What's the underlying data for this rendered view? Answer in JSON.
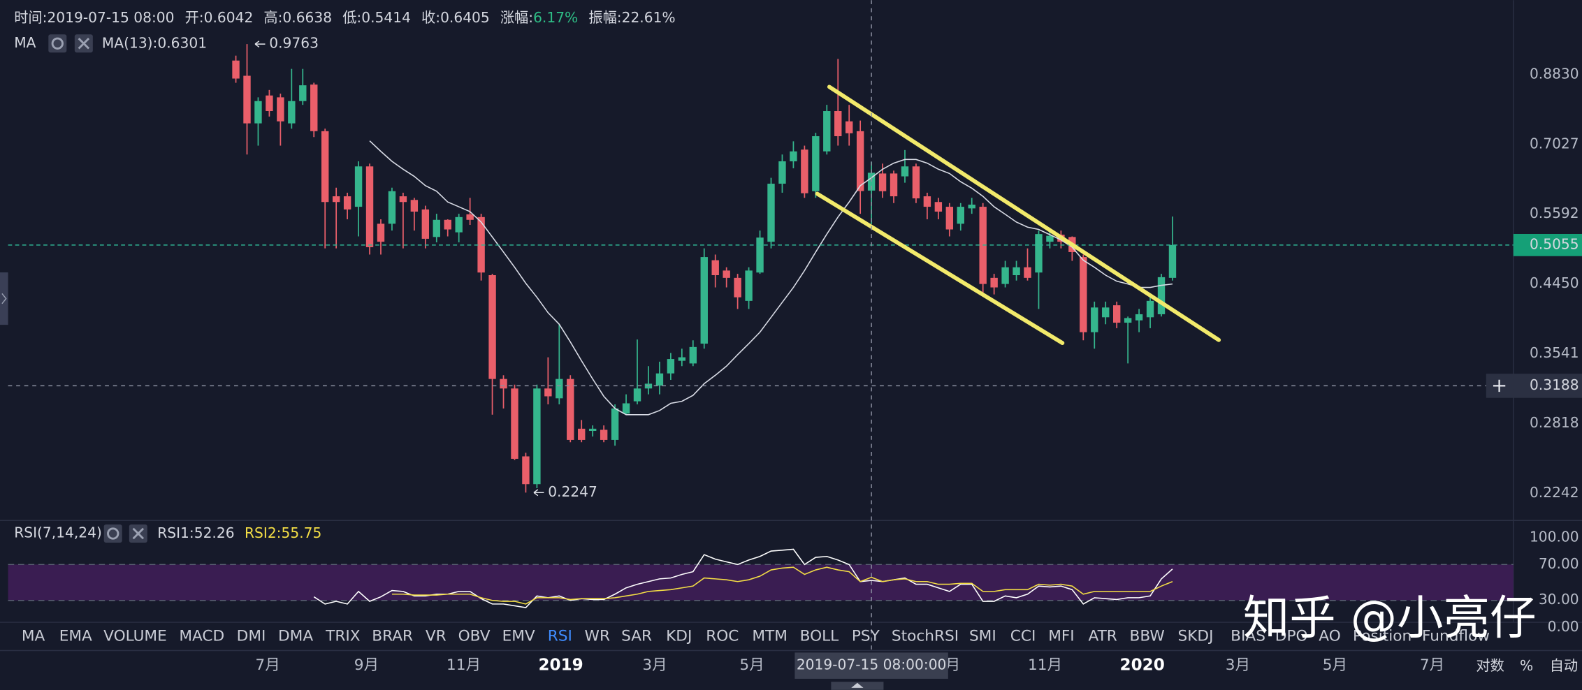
{
  "header": {
    "time_label": "时间:",
    "time": "2019-07-15 08:00",
    "open_label": "开:",
    "high_label": "高:",
    "low_label": "低:",
    "close_label": "收:",
    "change_label": "涨幅:",
    "change": "6.17%",
    "amplitude_label": "振幅:",
    "amplitude": "22.61%",
    "ma_title": "MA"
  },
  "chart_data": {
    "type": "candlestick",
    "log_scale": true,
    "up_color": "#35b68d",
    "down_color": "#ea5f6a",
    "xlim": [
      "2018-01-19",
      "2020-08-21"
    ],
    "xticks": [
      {
        "value": "2018-07-01",
        "label": "7月"
      },
      {
        "value": "2018-09-01",
        "label": "9月"
      },
      {
        "value": "2018-11-01",
        "label": "11月"
      },
      {
        "value": "2019-01-01",
        "label": "2019"
      },
      {
        "value": "2019-03-01",
        "label": "3月"
      },
      {
        "value": "2019-05-01",
        "label": "5月"
      },
      {
        "value": "2019-07-01",
        "label": "7月"
      },
      {
        "value": "2019-09-01",
        "label": "9月"
      },
      {
        "value": "2019-11-01",
        "label": "11月"
      },
      {
        "value": "2020-01-01",
        "label": "2020"
      },
      {
        "value": "2020-03-01",
        "label": "3月"
      },
      {
        "value": "2020-05-01",
        "label": "5月"
      },
      {
        "value": "2020-07-01",
        "label": "7月"
      }
    ],
    "ylim": [
      0.2051,
      1.098
    ],
    "yticks": [
      {
        "value": 0.883,
        "label": "0.8830"
      },
      0.7027,
      0.5592,
      {
        "value": 0.445,
        "label": "0.4450"
      },
      0.3541,
      0.2818,
      0.2242
    ],
    "x": [
      "2018-06-11",
      "2018-06-18",
      "2018-06-25",
      "2018-07-02",
      "2018-07-09",
      "2018-07-16",
      "2018-07-23",
      "2018-07-30",
      "2018-08-06",
      "2018-08-13",
      "2018-08-20",
      "2018-08-27",
      "2018-09-03",
      "2018-09-10",
      "2018-09-17",
      "2018-09-24",
      "2018-10-01",
      "2018-10-08",
      "2018-10-15",
      "2018-10-22",
      "2018-10-29",
      "2018-11-05",
      "2018-11-12",
      "2018-11-19",
      "2018-11-26",
      "2018-12-03",
      "2018-12-10",
      "2018-12-17",
      "2018-12-24",
      "2018-12-31",
      "2019-01-07",
      "2019-01-14",
      "2019-01-21",
      "2019-01-28",
      "2019-02-04",
      "2019-02-11",
      "2019-02-18",
      "2019-02-25",
      "2019-03-04",
      "2019-03-11",
      "2019-03-18",
      "2019-03-25",
      "2019-04-01",
      "2019-04-08",
      "2019-04-15",
      "2019-04-22",
      "2019-04-29",
      "2019-05-06",
      "2019-05-13",
      "2019-05-20",
      "2019-05-27",
      "2019-06-03",
      "2019-06-10",
      "2019-06-17",
      "2019-06-24",
      "2019-07-01",
      "2019-07-08",
      "2019-07-15",
      "2019-07-22",
      "2019-07-29",
      "2019-08-05",
      "2019-08-12",
      "2019-08-19",
      "2019-08-26",
      "2019-09-02",
      "2019-09-09",
      "2019-09-16",
      "2019-09-23",
      "2019-09-30",
      "2019-10-07",
      "2019-10-14",
      "2019-10-21",
      "2019-10-28",
      "2019-11-04",
      "2019-11-11",
      "2019-11-18",
      "2019-11-25",
      "2019-12-02",
      "2019-12-09",
      "2019-12-16",
      "2019-12-23",
      "2019-12-30",
      "2020-01-06",
      "2020-01-13",
      "2020-01-20"
    ],
    "open": [
      0.925,
      0.88,
      0.753,
      0.825,
      0.82,
      0.753,
      0.81,
      0.855,
      0.734,
      0.593,
      0.593,
      0.573,
      0.654,
      0.542,
      0.542,
      0.593,
      0.586,
      0.568,
      0.519,
      0.549,
      0.527,
      0.559,
      0.554,
      0.458,
      0.326,
      0.316,
      0.253,
      0.231,
      0.316,
      0.306,
      0.326,
      0.277,
      0.275,
      0.276,
      0.267,
      0.291,
      0.303,
      0.316,
      0.319,
      0.332,
      0.346,
      0.343,
      0.366,
      0.481,
      0.465,
      0.454,
      0.421,
      0.462,
      0.511,
      0.618,
      0.665,
      0.691,
      0.603,
      0.687,
      0.784,
      0.758,
      0.734,
      0.6042,
      0.639,
      0.639,
      0.633,
      0.654,
      0.593,
      0.582,
      0.573,
      0.542,
      0.57,
      0.573,
      0.454,
      0.445,
      0.458,
      0.47,
      0.462,
      0.511,
      0.523,
      0.519,
      0.486,
      0.38,
      0.399,
      0.415,
      0.392,
      0.395,
      0.399,
      0.403,
      0.454
    ],
    "high": [
      0.94,
      0.9763,
      0.82,
      0.84,
      0.83,
      0.9,
      0.9,
      0.86,
      0.74,
      0.61,
      0.6,
      0.665,
      0.66,
      0.55,
      0.61,
      0.6,
      0.59,
      0.575,
      0.56,
      0.55,
      0.56,
      0.59,
      0.56,
      0.46,
      0.33,
      0.32,
      0.256,
      0.32,
      0.35,
      0.39,
      0.33,
      0.285,
      0.28,
      0.28,
      0.3,
      0.31,
      0.371,
      0.34,
      0.345,
      0.355,
      0.36,
      0.37,
      0.5,
      0.49,
      0.47,
      0.46,
      0.47,
      0.53,
      0.63,
      0.68,
      0.71,
      0.7,
      0.73,
      0.8,
      0.93,
      0.8,
      0.76,
      0.6638,
      0.66,
      0.645,
      0.69,
      0.66,
      0.6,
      0.59,
      0.58,
      0.58,
      0.59,
      0.58,
      0.46,
      0.48,
      0.48,
      0.5,
      0.53,
      0.53,
      0.53,
      0.52,
      0.49,
      0.42,
      0.42,
      0.42,
      0.4,
      0.41,
      0.43,
      0.46,
      0.555
    ],
    "low": [
      0.86,
      0.68,
      0.7,
      0.77,
      0.7,
      0.74,
      0.8,
      0.72,
      0.5,
      0.5,
      0.55,
      0.52,
      0.49,
      0.49,
      0.53,
      0.5,
      0.53,
      0.5,
      0.51,
      0.52,
      0.51,
      0.54,
      0.45,
      0.29,
      0.296,
      0.25,
      0.2247,
      0.228,
      0.3,
      0.3,
      0.265,
      0.265,
      0.27,
      0.265,
      0.262,
      0.29,
      0.3,
      0.31,
      0.31,
      0.325,
      0.34,
      0.34,
      0.36,
      0.44,
      0.44,
      0.41,
      0.41,
      0.46,
      0.5,
      0.6,
      0.65,
      0.59,
      0.59,
      0.68,
      0.7,
      0.7,
      0.56,
      0.5414,
      0.59,
      0.58,
      0.62,
      0.58,
      0.55,
      0.55,
      0.52,
      0.53,
      0.56,
      0.43,
      0.43,
      0.44,
      0.45,
      0.45,
      0.41,
      0.5,
      0.5,
      0.48,
      0.37,
      0.36,
      0.39,
      0.385,
      0.343,
      0.38,
      0.385,
      0.4,
      0.45
    ],
    "close": [
      0.872,
      0.753,
      0.81,
      0.784,
      0.758,
      0.81,
      0.853,
      0.734,
      0.582,
      0.582,
      0.568,
      0.654,
      0.502,
      0.511,
      0.603,
      0.582,
      0.564,
      0.516,
      0.549,
      0.532,
      0.554,
      0.549,
      0.462,
      0.326,
      0.316,
      0.251,
      0.231,
      0.316,
      0.308,
      0.326,
      0.267,
      0.267,
      0.277,
      0.267,
      0.296,
      0.301,
      0.316,
      0.321,
      0.332,
      0.348,
      0.35,
      0.362,
      0.486,
      0.458,
      0.454,
      0.426,
      0.465,
      0.518,
      0.618,
      0.665,
      0.687,
      0.599,
      0.722,
      0.784,
      0.722,
      0.729,
      0.6033,
      0.6405,
      0.603,
      0.593,
      0.654,
      0.589,
      0.573,
      0.564,
      0.532,
      0.573,
      0.577,
      0.445,
      0.44,
      0.47,
      0.47,
      0.454,
      0.524,
      0.521,
      0.511,
      0.494,
      0.38,
      0.412,
      0.412,
      0.392,
      0.398,
      0.403,
      0.421,
      0.455,
      0.5055
    ],
    "series": [
      {
        "name": "MA(13):",
        "color": "#d9dce6",
        "values": [
          null,
          null,
          null,
          null,
          null,
          null,
          null,
          null,
          null,
          null,
          null,
          null,
          0.711,
          0.687,
          0.665,
          0.648,
          0.633,
          0.614,
          0.603,
          0.582,
          0.573,
          0.564,
          0.545,
          0.519,
          0.494,
          0.47,
          0.446,
          0.426,
          0.405,
          0.39,
          0.368,
          0.346,
          0.326,
          0.308,
          0.296,
          0.29,
          0.29,
          0.29,
          0.294,
          0.301,
          0.303,
          0.309,
          0.321,
          0.33,
          0.34,
          0.353,
          0.366,
          0.38,
          0.399,
          0.419,
          0.44,
          0.465,
          0.494,
          0.524,
          0.554,
          0.582,
          0.614,
          0.6301,
          0.648,
          0.661,
          0.669,
          0.669,
          0.661,
          0.648,
          0.639,
          0.622,
          0.609,
          0.593,
          0.573,
          0.559,
          0.545,
          0.536,
          0.532,
          0.523,
          0.514,
          0.502,
          0.481,
          0.47,
          0.458,
          0.449,
          0.445,
          0.44,
          0.44,
          0.443,
          0.445
        ]
      }
    ],
    "crosshair": {
      "index": 57,
      "price": 0.3188,
      "time": "2019-07-15 08:00:00"
    }
  },
  "rsi": {
    "title": "RSI(7,14,24)",
    "ylim": [
      0,
      100
    ],
    "band": [
      30,
      70
    ],
    "yticks": [
      {
        "value": 100,
        "label": "100.00"
      },
      {
        "value": 70,
        "label": "70.00"
      },
      {
        "value": 30,
        "label": "30.00"
      },
      {
        "value": 0,
        "label": "0.00"
      }
    ],
    "series": [
      {
        "name": "RSI1:",
        "color": "#ffffff",
        "values": [
          null,
          null,
          null,
          null,
          null,
          null,
          null,
          34,
          26,
          29,
          26,
          40,
          29,
          34,
          41,
          40,
          35,
          35,
          37,
          37,
          40,
          40,
          32,
          26,
          26,
          24,
          22,
          35,
          33,
          35,
          30,
          32,
          31,
          31,
          37,
          44,
          48,
          51,
          54,
          55,
          59,
          62,
          81,
          76,
          73,
          70,
          75,
          79,
          85,
          86,
          87,
          70,
          78,
          79,
          75,
          70,
          51,
          52.26,
          51,
          53,
          55,
          48,
          48,
          44,
          40,
          48,
          48,
          29,
          29,
          35,
          33,
          37,
          46,
          45,
          46,
          42,
          26,
          33,
          32,
          31,
          33,
          33,
          35,
          54,
          65
        ]
      },
      {
        "name": "RSI2:",
        "color": "#f3dd45",
        "values": [
          null,
          null,
          null,
          null,
          null,
          null,
          null,
          null,
          null,
          null,
          null,
          null,
          null,
          null,
          37,
          37,
          36,
          36,
          36,
          37,
          37,
          37,
          33,
          30,
          29,
          29,
          26,
          33,
          33,
          33,
          31,
          32,
          32,
          32,
          33,
          35,
          37,
          40,
          41,
          42,
          44,
          46,
          55,
          54,
          53,
          51,
          53,
          57,
          64,
          66,
          67,
          59,
          64,
          67,
          64,
          62,
          51,
          55.75,
          51,
          53,
          54,
          51,
          51,
          48,
          48,
          49,
          49,
          40,
          40,
          42,
          42,
          42,
          48,
          47,
          48,
          46,
          37,
          40,
          40,
          40,
          40,
          40,
          40,
          46,
          51
        ]
      }
    ]
  },
  "indicators": [
    "MA",
    "EMA",
    "VOLUME",
    "MACD",
    "DMI",
    "DMA",
    "TRIX",
    "BRAR",
    "VR",
    "OBV",
    "EMV",
    "RSI",
    "WR",
    "SAR",
    "KDJ",
    "ROC",
    "MTM",
    "BOLL",
    "PSY",
    "StochRSI",
    "SMI",
    "CCI",
    "MFI",
    "ATR",
    "BBW",
    "SKDJ",
    "BIAS",
    "DPO",
    "AO",
    "Position",
    "Fundflow"
  ],
  "active_indicator": 11,
  "scale_modes": [
    "对数",
    "%",
    "自动"
  ],
  "watermark": "知乎 @小亮仔"
}
